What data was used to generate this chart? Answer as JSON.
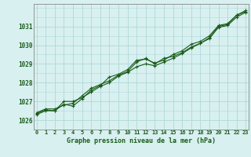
{
  "title": "Graphe pression niveau de la mer (hPa)",
  "bg_color": "#d8f0f0",
  "grid_color": "#b0d8d8",
  "line_color": "#1a5c1a",
  "spine_color": "#888888",
  "x_labels": [
    "0",
    "1",
    "2",
    "3",
    "4",
    "5",
    "6",
    "7",
    "8",
    "9",
    "10",
    "11",
    "12",
    "13",
    "14",
    "15",
    "16",
    "17",
    "18",
    "19",
    "20",
    "21",
    "22",
    "23"
  ],
  "yticks": [
    1026,
    1027,
    1028,
    1029,
    1030,
    1031
  ],
  "ylim": [
    1025.5,
    1032.2
  ],
  "xlim": [
    -0.3,
    23.3
  ],
  "series": [
    [
      1026.4,
      1026.6,
      1026.6,
      1026.8,
      1026.9,
      1027.3,
      1027.7,
      1027.9,
      1028.1,
      1028.4,
      1028.6,
      1029.1,
      1029.3,
      1029.0,
      1029.3,
      1029.4,
      1029.6,
      1029.9,
      1030.1,
      1030.4,
      1031.0,
      1031.1,
      1031.6,
      1031.8
    ],
    [
      1026.3,
      1026.5,
      1026.5,
      1027.0,
      1027.0,
      1027.2,
      1027.5,
      1027.8,
      1028.0,
      1028.35,
      1028.55,
      1028.85,
      1029.0,
      1028.9,
      1029.1,
      1029.3,
      1029.55,
      1029.85,
      1030.1,
      1030.35,
      1030.95,
      1031.05,
      1031.5,
      1031.75
    ],
    [
      1026.35,
      1026.55,
      1026.5,
      1026.85,
      1026.75,
      1027.15,
      1027.6,
      1027.85,
      1028.3,
      1028.45,
      1028.7,
      1029.2,
      1029.25,
      1029.05,
      1029.2,
      1029.5,
      1029.7,
      1030.05,
      1030.2,
      1030.5,
      1031.05,
      1031.15,
      1031.6,
      1031.85
    ]
  ]
}
